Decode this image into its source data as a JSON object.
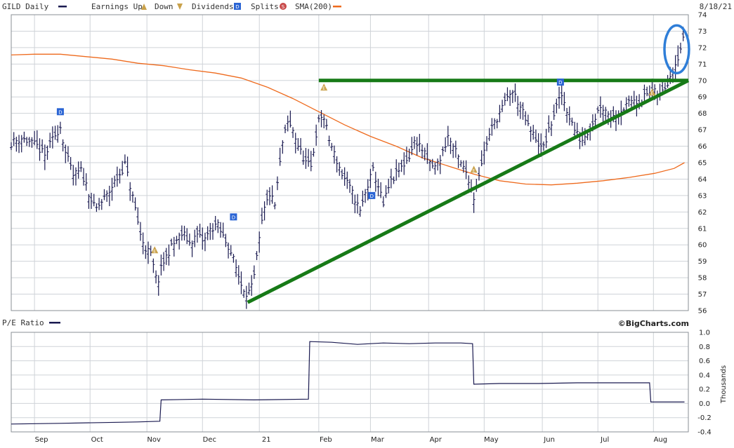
{
  "header": {
    "symbol_label": "GILD Daily",
    "earnings_label": "Earnings Up",
    "down_label": "Down",
    "dividends_label": "Dividends",
    "splits_label": "Splits",
    "sma_label": "SMA(200)",
    "date": "8/18/21"
  },
  "colors": {
    "price": "#1a1a50",
    "sma": "#ee6a1d",
    "trend": "#177a17",
    "circle": "#2f7ed8",
    "grid": "#cfd3d8",
    "dividend_marker": "#2a64d4",
    "earnings_marker": "#c9a14a",
    "pe_line": "#1a1a50"
  },
  "icons": {
    "earnings_up": "earnings-up-triangle-icon",
    "earnings_down": "earnings-down-triangle-icon",
    "dividend": "dividend-square-icon",
    "split": "split-circle-icon"
  },
  "marker_letters": {
    "earnings": "E",
    "dividend": "D",
    "split": "S"
  },
  "lower_panel": {
    "label": "P/E Ratio",
    "axis_label": "Thousands"
  },
  "watermark": "©BigCharts.com",
  "chart_data": [
    {
      "type": "line",
      "subtype": "ohlc-bars",
      "ylim": [
        56,
        74
      ],
      "yticks": [
        56,
        57,
        58,
        59,
        60,
        61,
        62,
        63,
        64,
        65,
        66,
        67,
        68,
        69,
        70,
        71,
        72,
        73,
        74
      ],
      "months": [
        {
          "label": "Sep",
          "week": 0
        },
        {
          "label": "Oct",
          "week": 4.3
        },
        {
          "label": "Nov",
          "week": 8.7
        },
        {
          "label": "Dec",
          "week": 13
        },
        {
          "label": "21",
          "week": 17.4
        },
        {
          "label": "Feb",
          "week": 22
        },
        {
          "label": "Mar",
          "week": 26
        },
        {
          "label": "Apr",
          "week": 30.5
        },
        {
          "label": "May",
          "week": 34.8
        },
        {
          "label": "Jun",
          "week": 39.3
        },
        {
          "label": "Jul",
          "week": 43.6
        },
        {
          "label": "Aug",
          "week": 47.9
        }
      ],
      "xlim_weeks": [
        -1.8,
        50.6
      ],
      "price_keypoints": [
        [
          -1.8,
          66.2
        ],
        [
          -1.0,
          66.5
        ],
        [
          0.2,
          66.0
        ],
        [
          0.8,
          65.4
        ],
        [
          1.4,
          66.4
        ],
        [
          2.0,
          67.2
        ],
        [
          2.4,
          65.6
        ],
        [
          3.0,
          64.2
        ],
        [
          3.6,
          64.5
        ],
        [
          4.2,
          63.2
        ],
        [
          4.7,
          62.1
        ],
        [
          5.2,
          62.6
        ],
        [
          5.7,
          63.1
        ],
        [
          6.1,
          63.7
        ],
        [
          6.6,
          64.3
        ],
        [
          7.0,
          64.9
        ],
        [
          7.4,
          63.6
        ],
        [
          7.8,
          62.2
        ],
        [
          8.2,
          60.6
        ],
        [
          8.6,
          59.8
        ],
        [
          9.0,
          59.4
        ],
        [
          9.5,
          57.6
        ],
        [
          9.9,
          58.8
        ],
        [
          10.4,
          59.6
        ],
        [
          10.9,
          60.2
        ],
        [
          11.5,
          60.7
        ],
        [
          12.0,
          60.1
        ],
        [
          12.6,
          60.6
        ],
        [
          13.1,
          60.2
        ],
        [
          13.6,
          60.9
        ],
        [
          14.1,
          61.3
        ],
        [
          14.6,
          60.5
        ],
        [
          15.1,
          59.8
        ],
        [
          15.6,
          58.6
        ],
        [
          16.0,
          57.6
        ],
        [
          16.5,
          57.0
        ],
        [
          16.9,
          57.5
        ],
        [
          17.3,
          59.7
        ],
        [
          17.7,
          61.9
        ],
        [
          18.2,
          63.1
        ],
        [
          18.6,
          62.4
        ],
        [
          19.2,
          66.2
        ],
        [
          19.6,
          67.4
        ],
        [
          20.0,
          67.0
        ],
        [
          20.5,
          65.8
        ],
        [
          21.0,
          65.0
        ],
        [
          21.4,
          64.7
        ],
        [
          21.9,
          67.3
        ],
        [
          22.3,
          68.0
        ],
        [
          22.8,
          66.4
        ],
        [
          23.3,
          65.3
        ],
        [
          23.8,
          64.3
        ],
        [
          24.3,
          63.6
        ],
        [
          24.8,
          62.8
        ],
        [
          25.2,
          62.0
        ],
        [
          25.7,
          63.4
        ],
        [
          26.2,
          64.5
        ],
        [
          26.6,
          63.6
        ],
        [
          27.0,
          62.4
        ],
        [
          27.5,
          63.7
        ],
        [
          28.0,
          64.3
        ],
        [
          28.5,
          64.8
        ],
        [
          29.0,
          65.4
        ],
        [
          29.5,
          66.4
        ],
        [
          30.0,
          65.8
        ],
        [
          30.5,
          65.0
        ],
        [
          31.0,
          64.7
        ],
        [
          31.5,
          65.4
        ],
        [
          32.0,
          66.6
        ],
        [
          32.5,
          65.8
        ],
        [
          33.0,
          64.9
        ],
        [
          33.5,
          64.3
        ],
        [
          34.0,
          62.9
        ],
        [
          34.4,
          64.4
        ],
        [
          34.9,
          66.0
        ],
        [
          35.4,
          67.1
        ],
        [
          35.9,
          67.9
        ],
        [
          36.4,
          68.6
        ],
        [
          36.9,
          69.4
        ],
        [
          37.3,
          68.9
        ],
        [
          37.8,
          68.0
        ],
        [
          38.3,
          67.0
        ],
        [
          38.8,
          66.5
        ],
        [
          39.3,
          65.7
        ],
        [
          39.8,
          66.9
        ],
        [
          40.3,
          68.2
        ],
        [
          40.8,
          69.1
        ],
        [
          41.3,
          68.0
        ],
        [
          41.8,
          67.0
        ],
        [
          42.3,
          66.3
        ],
        [
          42.8,
          66.9
        ],
        [
          43.3,
          67.6
        ],
        [
          43.8,
          68.5
        ],
        [
          44.3,
          68.1
        ],
        [
          44.8,
          67.8
        ],
        [
          45.3,
          68.2
        ],
        [
          45.8,
          68.4
        ],
        [
          46.3,
          68.9
        ],
        [
          46.8,
          68.7
        ],
        [
          47.3,
          69.1
        ],
        [
          47.8,
          69.4
        ],
        [
          48.3,
          69.0
        ],
        [
          48.8,
          69.6
        ],
        [
          49.3,
          70.5
        ],
        [
          49.8,
          71.5
        ],
        [
          50.3,
          72.7
        ]
      ],
      "sma_200": {
        "name": "SMA(200)",
        "points": [
          [
            -1.8,
            71.55
          ],
          [
            0,
            71.6
          ],
          [
            2,
            71.6
          ],
          [
            4,
            71.45
          ],
          [
            6,
            71.3
          ],
          [
            8,
            71.05
          ],
          [
            10,
            70.9
          ],
          [
            12,
            70.65
          ],
          [
            14,
            70.45
          ],
          [
            16,
            70.15
          ],
          [
            18,
            69.6
          ],
          [
            20,
            68.9
          ],
          [
            22,
            68.1
          ],
          [
            24,
            67.3
          ],
          [
            26,
            66.6
          ],
          [
            28,
            66.0
          ],
          [
            30,
            65.3
          ],
          [
            32,
            64.8
          ],
          [
            34,
            64.3
          ],
          [
            36,
            63.9
          ],
          [
            38,
            63.7
          ],
          [
            40,
            63.65
          ],
          [
            42,
            63.75
          ],
          [
            44,
            63.9
          ],
          [
            46,
            64.1
          ],
          [
            48,
            64.35
          ],
          [
            49.5,
            64.65
          ],
          [
            50.3,
            65.0
          ]
        ]
      },
      "trendlines": [
        {
          "from": [
            16.5,
            56.5
          ],
          "to": [
            50.6,
            70.0
          ]
        },
        {
          "from": [
            22.0,
            70.0
          ],
          "to": [
            50.6,
            70.0
          ]
        }
      ],
      "highlight_ellipse": {
        "center": [
          49.7,
          71.9
        ],
        "radius_weeks": 0.95,
        "radius_price": 1.45
      },
      "events": [
        {
          "type": "dividend",
          "week": 2.0,
          "price": 68.1
        },
        {
          "type": "earnings",
          "week": 9.3,
          "price": 59.7
        },
        {
          "type": "dividend",
          "week": 15.4,
          "price": 61.7
        },
        {
          "type": "earnings",
          "week": 22.4,
          "price": 69.6
        },
        {
          "type": "dividend",
          "week": 26.1,
          "price": 63.0
        },
        {
          "type": "earnings",
          "week": 34.0,
          "price": 64.6
        },
        {
          "type": "dividend",
          "week": 40.7,
          "price": 69.9
        },
        {
          "type": "earnings",
          "week": 47.8,
          "price": 69.3
        }
      ]
    },
    {
      "type": "line",
      "name": "P/E Ratio",
      "ylim": [
        -0.4,
        1.0
      ],
      "yticks": [
        "-0.4",
        "-0.2",
        "0.0",
        "0.2",
        "0.4",
        "0.6",
        "0.8",
        "1.0"
      ],
      "ylabel": "Thousands",
      "points": [
        [
          -1.8,
          -0.29
        ],
        [
          2,
          -0.28
        ],
        [
          5,
          -0.27
        ],
        [
          8,
          -0.26
        ],
        [
          9.7,
          -0.25
        ],
        [
          9.8,
          0.05
        ],
        [
          13,
          0.06
        ],
        [
          17,
          0.05
        ],
        [
          21.2,
          0.06
        ],
        [
          21.3,
          0.87
        ],
        [
          23,
          0.86
        ],
        [
          25,
          0.83
        ],
        [
          27,
          0.85
        ],
        [
          29,
          0.84
        ],
        [
          31,
          0.85
        ],
        [
          33,
          0.85
        ],
        [
          33.9,
          0.84
        ],
        [
          34.0,
          0.27
        ],
        [
          36,
          0.28
        ],
        [
          39,
          0.28
        ],
        [
          42,
          0.29
        ],
        [
          45,
          0.29
        ],
        [
          47.6,
          0.29
        ],
        [
          47.7,
          0.02
        ],
        [
          50.3,
          0.02
        ]
      ]
    }
  ]
}
